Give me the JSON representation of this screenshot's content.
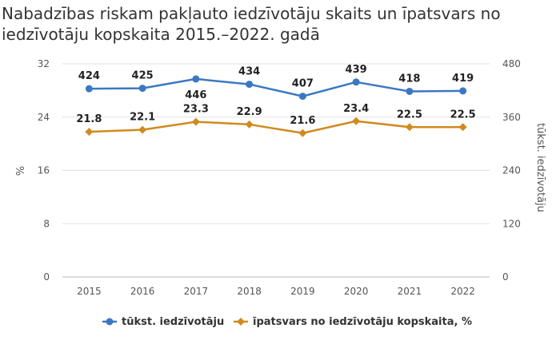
{
  "title_line1": "Nabadzības riskam pakļauto iedzīvotāju skaits un īpatsvars no",
  "title_line2": "iedzīvotāju kopskaita 2015.–2022. gadā",
  "chart_data": {
    "type": "line",
    "categories": [
      "2015",
      "2016",
      "2017",
      "2018",
      "2019",
      "2020",
      "2021",
      "2022"
    ],
    "series": [
      {
        "name": "tūkst. iedzīvotāju",
        "axis": "right",
        "values": [
          424,
          425,
          446,
          434,
          407,
          439,
          418,
          419
        ],
        "labels": [
          "424",
          "425",
          "446",
          "434",
          "407",
          "439",
          "418",
          "419"
        ],
        "color": "#3b78c3"
      },
      {
        "name": "īpatsvars no iedzīvotāju kopskaita, %",
        "axis": "left",
        "values": [
          21.8,
          22.1,
          23.3,
          22.9,
          21.6,
          23.4,
          22.5,
          22.5
        ],
        "labels": [
          "21.8",
          "22.1",
          "23.3",
          "22.9",
          "21.6",
          "23.4",
          "22.5",
          "22.5"
        ],
        "color": "#d08a1e"
      }
    ],
    "ylabel": "%",
    "ylim": [
      0,
      32
    ],
    "yticks": [
      "0",
      "8",
      "16",
      "24",
      "32"
    ],
    "y2label": "tūkst. iedzīvotāju",
    "y2lim": [
      0,
      480
    ],
    "y2ticks": [
      "0",
      "120",
      "240",
      "360",
      "480"
    ],
    "grid": true,
    "legend_position": "bottom"
  }
}
